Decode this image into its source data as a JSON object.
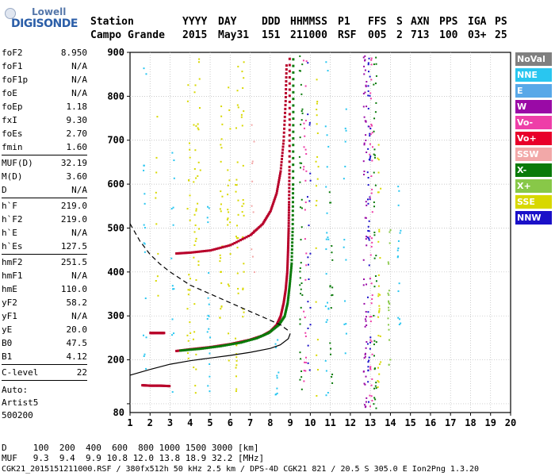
{
  "logo": {
    "line1": "Lowell",
    "line2": "DIGISONDE"
  },
  "header": {
    "row1": [
      "Station",
      "YYYY",
      "DAY",
      "DDD",
      "HHMMSS",
      "P1",
      "FFS",
      "S",
      "AXN",
      "PPS",
      "IGA",
      "PS"
    ],
    "row2": [
      "Campo Grande",
      "2015",
      "May31",
      "151",
      "211000",
      "RSF",
      "005",
      "2",
      "713",
      "100",
      "03+",
      "25"
    ]
  },
  "params": {
    "group1": [
      {
        "k": "foF2",
        "v": "8.950"
      },
      {
        "k": "foF1",
        "v": "N/A"
      },
      {
        "k": "foF1p",
        "v": "N/A"
      },
      {
        "k": "foE",
        "v": "N/A"
      },
      {
        "k": "foEp",
        "v": "1.18"
      },
      {
        "k": "fxI",
        "v": "9.30"
      },
      {
        "k": "foEs",
        "v": "2.70"
      },
      {
        "k": "fmin",
        "v": "1.60"
      }
    ],
    "group2": [
      {
        "k": "MUF(D)",
        "v": "32.19"
      },
      {
        "k": "M(D)",
        "v": "3.60"
      },
      {
        "k": "D",
        "v": "N/A"
      }
    ],
    "group3": [
      {
        "k": "h`F",
        "v": "219.0"
      },
      {
        "k": "h`F2",
        "v": "219.0"
      },
      {
        "k": "h`E",
        "v": "N/A"
      },
      {
        "k": "h`Es",
        "v": "127.5"
      }
    ],
    "group4": [
      {
        "k": "hmF2",
        "v": "251.5"
      },
      {
        "k": "hmF1",
        "v": "N/A"
      },
      {
        "k": "hmE",
        "v": "110.0"
      },
      {
        "k": "yF2",
        "v": "58.2"
      },
      {
        "k": "yF1",
        "v": "N/A"
      },
      {
        "k": "yE",
        "v": "20.0"
      },
      {
        "k": "B0",
        "v": "47.5"
      },
      {
        "k": "B1",
        "v": "4.12"
      }
    ],
    "group5": [
      {
        "k": "C-level",
        "v": "22"
      }
    ],
    "auto": [
      "Auto:",
      "Artist5",
      "500200"
    ]
  },
  "legend": [
    {
      "label": "NoVal",
      "color": "#808080"
    },
    {
      "label": "NNE",
      "color": "#29c6f0"
    },
    {
      "label": "E",
      "color": "#58a8e8"
    },
    {
      "label": "W",
      "color": "#9a0aa6"
    },
    {
      "label": "Vo-",
      "color": "#ee3ea8"
    },
    {
      "label": "Vo+",
      "color": "#e8002a"
    },
    {
      "label": "SSW",
      "color": "#f2a8a8"
    },
    {
      "label": "X-",
      "color": "#0a7a0a"
    },
    {
      "label": "X+",
      "color": "#88c848"
    },
    {
      "label": "SSE",
      "color": "#d8d800"
    },
    {
      "label": "NNW",
      "color": "#1a10c8"
    }
  ],
  "footer": {
    "d_row": "D     100  200  400  600  800 1000 1500 3000 [km]",
    "muf_row": "MUF   9.3  9.4  9.9 10.8 12.0 13.8 18.9 32.2 [MHz]",
    "info": "CGK21_2015151211000.RSF / 380fx512h 50 kHz 2.5 km / DPS-4D CGK21 821 / 20.5 S 305.0 E Ion2Png 1.3.20"
  },
  "chart_data": {
    "type": "scatter",
    "xlim": [
      1,
      20
    ],
    "ylim": [
      80,
      900
    ],
    "xticks": [
      1,
      2,
      3,
      4,
      5,
      6,
      7,
      8,
      9,
      10,
      11,
      12,
      13,
      14,
      15,
      16,
      17,
      18,
      19,
      20
    ],
    "yticks": [
      200,
      300,
      400,
      500,
      600,
      700,
      800,
      900
    ],
    "yticks_unlabeled": [
      100
    ],
    "yticks_labels": [
      "80",
      "200",
      "300",
      "400",
      "500",
      "600",
      "700",
      "800",
      "900"
    ],
    "grid": true,
    "series": [
      {
        "kind": "o-trace-F2",
        "color": "#b8002a",
        "points": [
          [
            3.3,
            221
          ],
          [
            4,
            225
          ],
          [
            5,
            230
          ],
          [
            6,
            237
          ],
          [
            7,
            247
          ],
          [
            7.6,
            256
          ],
          [
            8,
            266
          ],
          [
            8.3,
            280
          ],
          [
            8.5,
            300
          ],
          [
            8.65,
            330
          ],
          [
            8.75,
            360
          ],
          [
            8.83,
            400
          ],
          [
            8.87,
            450
          ],
          [
            8.9,
            500
          ],
          [
            8.92,
            560
          ],
          [
            8.94,
            640
          ],
          [
            8.95,
            760
          ],
          [
            8.95,
            900
          ]
        ]
      },
      {
        "kind": "x-trace-F2",
        "color": "#0a7a0a",
        "points": [
          [
            3.5,
            222
          ],
          [
            4.5,
            226
          ],
          [
            5.5,
            232
          ],
          [
            6.5,
            240
          ],
          [
            7.3,
            250
          ],
          [
            7.9,
            262
          ],
          [
            8.4,
            280
          ],
          [
            8.7,
            300
          ],
          [
            8.85,
            330
          ],
          [
            8.95,
            370
          ],
          [
            9.05,
            420
          ],
          [
            9.1,
            500
          ],
          [
            9.12,
            600
          ],
          [
            9.13,
            750
          ],
          [
            9.13,
            900
          ]
        ]
      },
      {
        "kind": "multihop-trace",
        "color": "#b8002a",
        "points": [
          [
            3.3,
            443
          ],
          [
            4,
            445
          ],
          [
            5,
            450
          ],
          [
            6,
            462
          ],
          [
            7,
            485
          ],
          [
            7.6,
            510
          ],
          [
            8,
            540
          ],
          [
            8.3,
            580
          ],
          [
            8.5,
            630
          ],
          [
            8.65,
            700
          ],
          [
            8.75,
            790
          ],
          [
            8.8,
            880
          ]
        ]
      },
      {
        "kind": "Es-trace",
        "color": "#b8002a",
        "points": [
          [
            2.0,
            262
          ],
          [
            2.2,
            262
          ],
          [
            2.5,
            262
          ],
          [
            2.7,
            262
          ]
        ]
      },
      {
        "kind": "Es-low-trace",
        "color": "#b8002a",
        "points": [
          [
            1.6,
            143
          ],
          [
            2,
            142
          ],
          [
            2.5,
            142
          ],
          [
            3.0,
            141
          ]
        ]
      }
    ],
    "curves": [
      {
        "kind": "virtual-height-model",
        "style": "solid",
        "color": "#000000",
        "points": [
          [
            1,
            165
          ],
          [
            2,
            178
          ],
          [
            3,
            190
          ],
          [
            4,
            198
          ],
          [
            5,
            204
          ],
          [
            6,
            210
          ],
          [
            7,
            217
          ],
          [
            8,
            226
          ],
          [
            8.5,
            234
          ],
          [
            8.9,
            248
          ],
          [
            9.0,
            260
          ]
        ]
      },
      {
        "kind": "MUF-curve",
        "style": "dashed",
        "color": "#000000",
        "points": [
          [
            1,
            510
          ],
          [
            1.5,
            470
          ],
          [
            2,
            440
          ],
          [
            2.5,
            418
          ],
          [
            3,
            400
          ],
          [
            3.5,
            385
          ],
          [
            4,
            370
          ],
          [
            5,
            350
          ],
          [
            6,
            330
          ],
          [
            7,
            310
          ],
          [
            8,
            290
          ],
          [
            8.5,
            280
          ],
          [
            8.95,
            265
          ]
        ]
      }
    ]
  }
}
